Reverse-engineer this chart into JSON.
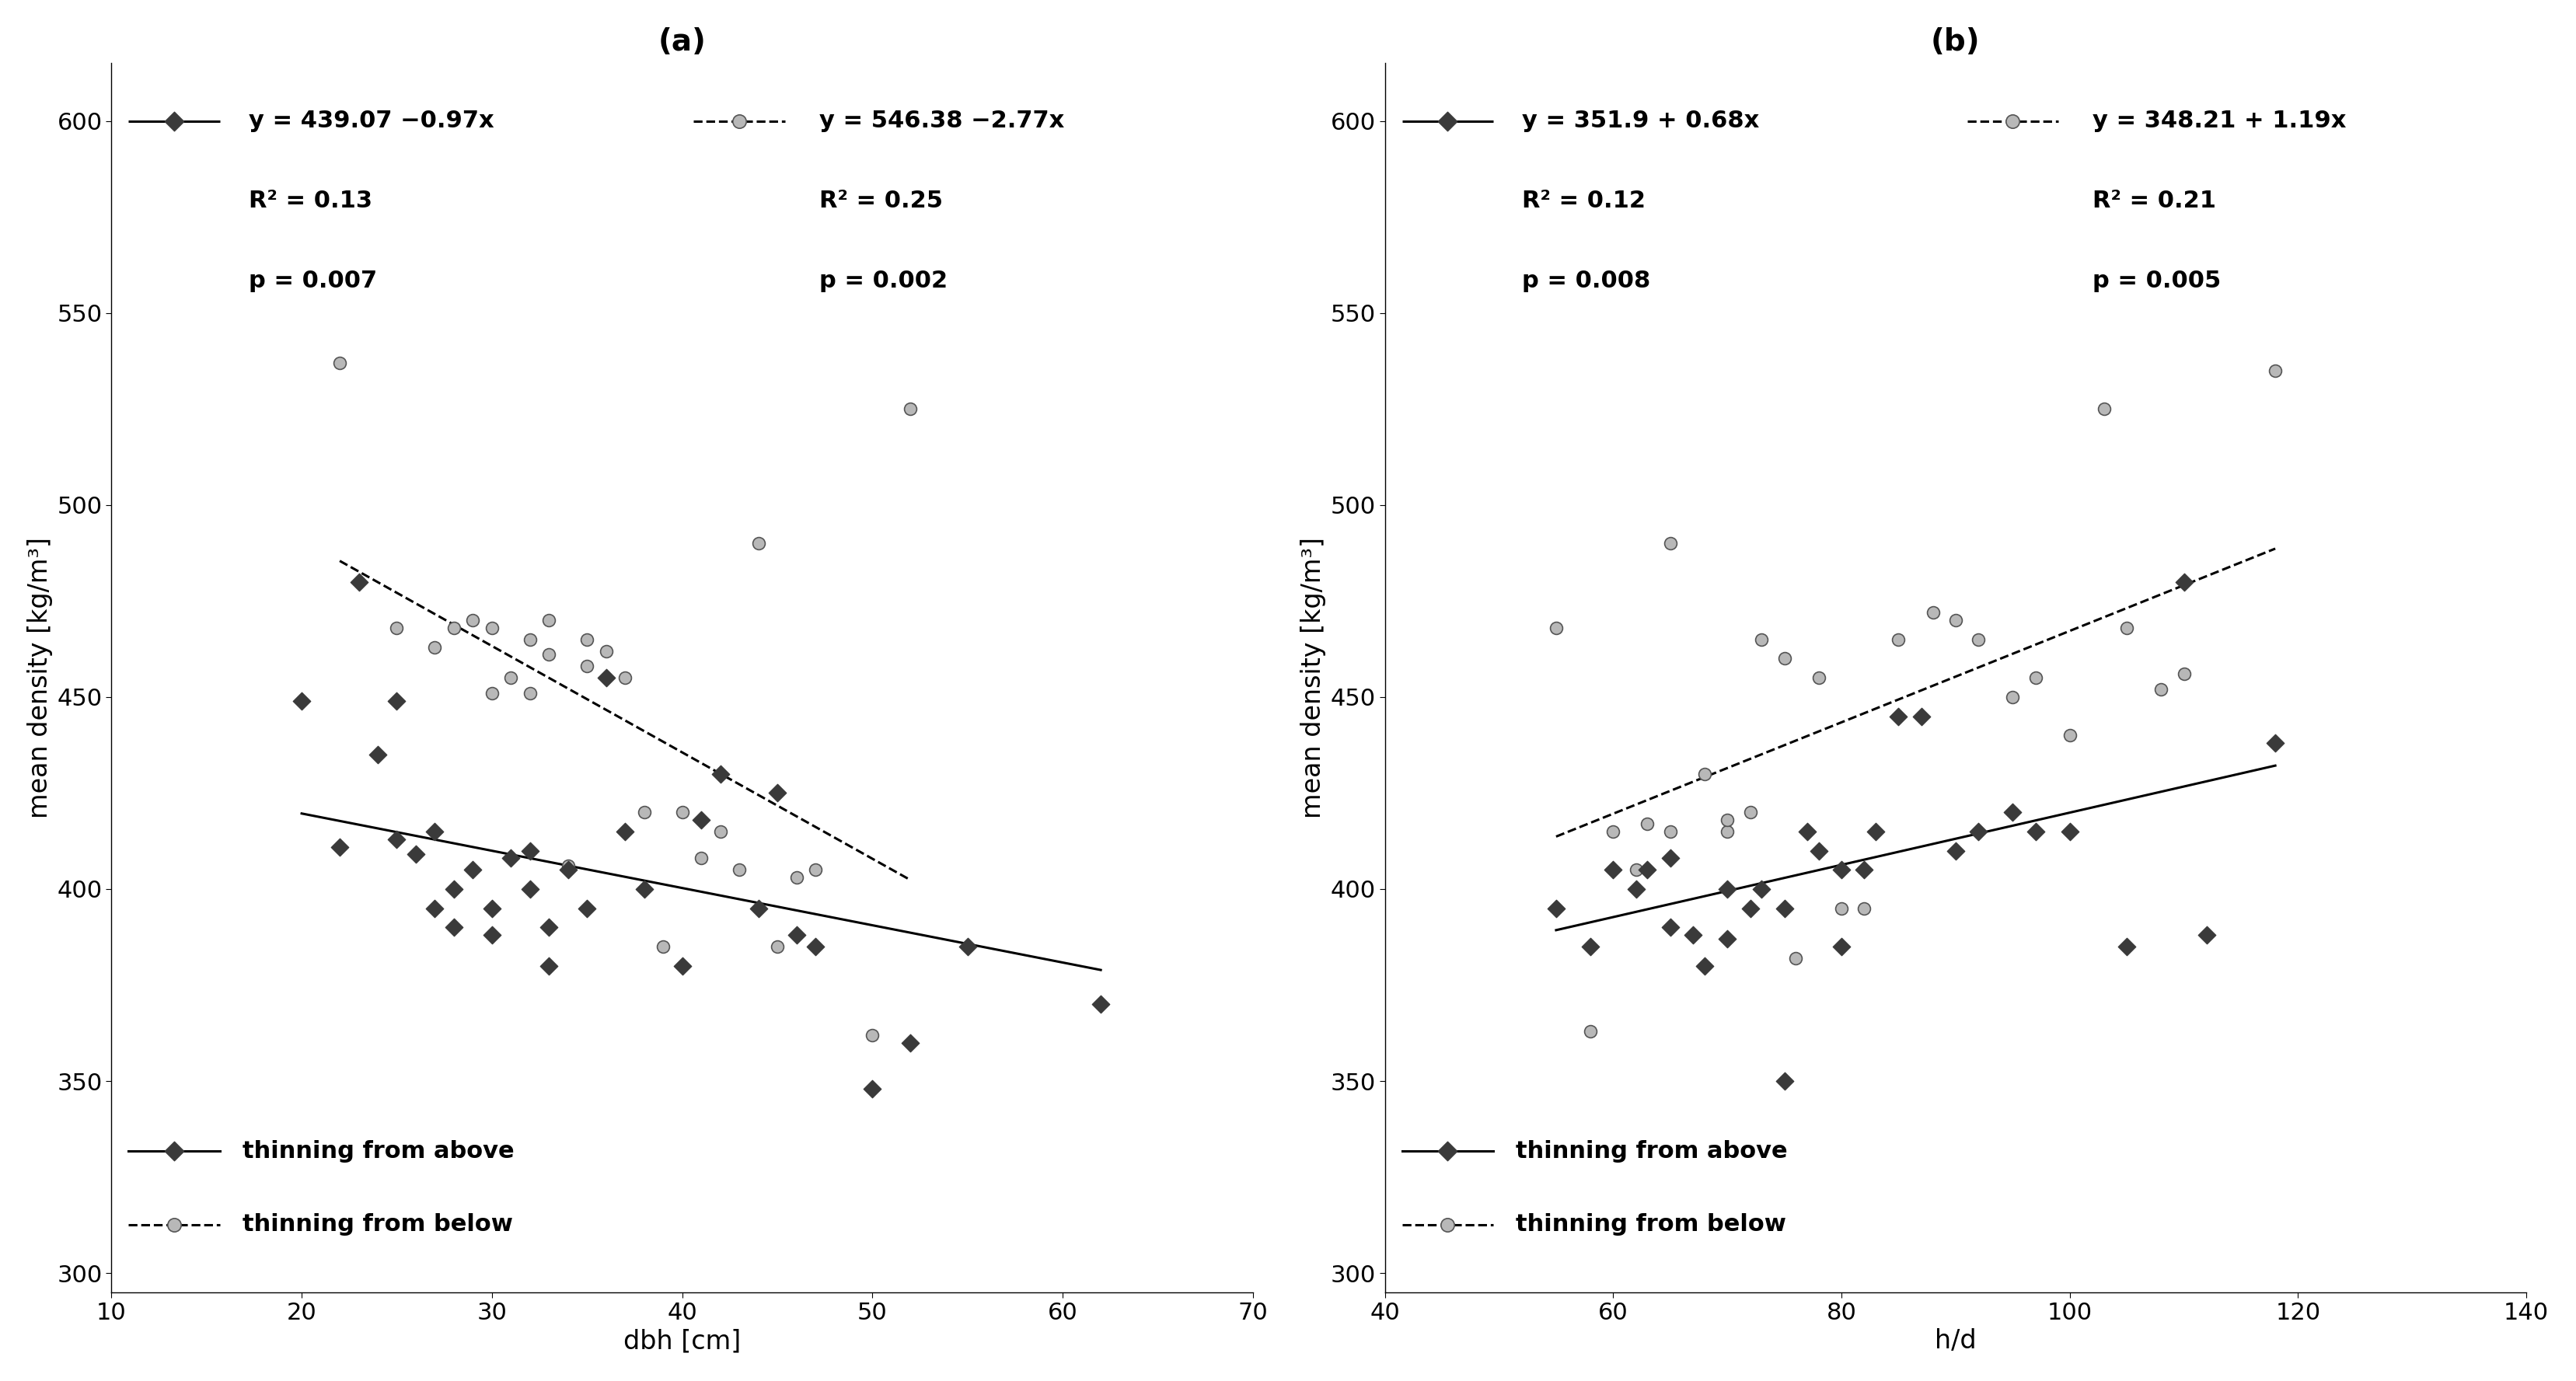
{
  "panel_a": {
    "title": "(a)",
    "xlabel": "dbh [cm]",
    "ylabel": "mean density [kg/m³]",
    "xlim": [
      10,
      70
    ],
    "ylim": [
      295,
      615
    ],
    "xticks": [
      10,
      20,
      30,
      40,
      50,
      60,
      70
    ],
    "yticks": [
      300,
      350,
      400,
      450,
      500,
      550,
      600
    ],
    "above_x": [
      20,
      22,
      23,
      24,
      25,
      25,
      26,
      27,
      27,
      28,
      28,
      29,
      30,
      30,
      31,
      32,
      32,
      33,
      33,
      34,
      35,
      36,
      37,
      38,
      40,
      41,
      42,
      44,
      45,
      46,
      47,
      50,
      52,
      55,
      62
    ],
    "above_y": [
      449,
      411,
      480,
      435,
      413,
      449,
      409,
      415,
      395,
      400,
      390,
      405,
      395,
      388,
      408,
      410,
      400,
      390,
      380,
      405,
      395,
      455,
      415,
      400,
      380,
      418,
      430,
      395,
      425,
      388,
      385,
      348,
      360,
      385,
      370
    ],
    "below_x": [
      22,
      25,
      27,
      28,
      29,
      30,
      30,
      31,
      32,
      32,
      33,
      33,
      34,
      35,
      35,
      36,
      37,
      38,
      39,
      40,
      41,
      42,
      43,
      44,
      45,
      46,
      47,
      50,
      52
    ],
    "below_y": [
      537,
      468,
      463,
      468,
      470,
      468,
      451,
      455,
      451,
      465,
      470,
      461,
      406,
      465,
      458,
      462,
      455,
      420,
      385,
      420,
      408,
      415,
      405,
      490,
      385,
      403,
      405,
      362,
      525
    ],
    "above_eq": "y = 439.07 −0.97x",
    "above_r2": "R² = 0.13",
    "above_p": "p = 0.007",
    "above_intercept": 439.07,
    "above_slope": -0.97,
    "above_xmin": 20,
    "above_xmax": 62,
    "below_eq": "y = 546.38 −2.77x",
    "below_r2": "R² = 0.25",
    "below_p": "p = 0.002",
    "below_intercept": 546.38,
    "below_slope": -2.77,
    "below_xmin": 22,
    "below_xmax": 52
  },
  "panel_b": {
    "title": "(b)",
    "xlabel": "h/d",
    "ylabel": "mean density [kg/m³]",
    "xlim": [
      40,
      140
    ],
    "ylim": [
      295,
      615
    ],
    "xticks": [
      40,
      60,
      80,
      100,
      120,
      140
    ],
    "yticks": [
      300,
      350,
      400,
      450,
      500,
      550,
      600
    ],
    "above_x": [
      55,
      58,
      60,
      62,
      63,
      65,
      65,
      67,
      68,
      70,
      70,
      72,
      73,
      75,
      75,
      77,
      78,
      80,
      80,
      82,
      83,
      85,
      87,
      90,
      92,
      95,
      97,
      100,
      105,
      110,
      112,
      118
    ],
    "above_y": [
      395,
      385,
      405,
      400,
      405,
      390,
      408,
      388,
      380,
      387,
      400,
      395,
      400,
      395,
      350,
      415,
      410,
      405,
      385,
      405,
      415,
      445,
      445,
      410,
      415,
      420,
      415,
      415,
      385,
      480,
      388,
      438
    ],
    "below_x": [
      55,
      58,
      60,
      62,
      63,
      65,
      65,
      68,
      70,
      70,
      72,
      73,
      75,
      76,
      78,
      80,
      82,
      85,
      88,
      90,
      92,
      95,
      97,
      100,
      103,
      105,
      108,
      110,
      118
    ],
    "below_y": [
      468,
      363,
      415,
      405,
      417,
      415,
      490,
      430,
      415,
      418,
      420,
      465,
      460,
      382,
      455,
      395,
      395,
      465,
      472,
      470,
      465,
      450,
      455,
      440,
      525,
      468,
      452,
      456,
      535
    ],
    "above_eq": "y = 351.9 + 0.68x",
    "above_r2": "R² = 0.12",
    "above_p": "p = 0.008",
    "above_intercept": 351.9,
    "above_slope": 0.68,
    "above_xmin": 55,
    "above_xmax": 118,
    "below_eq": "y = 348.21 + 1.19x",
    "below_r2": "R² = 0.21",
    "below_p": "p = 0.005",
    "below_intercept": 348.21,
    "below_slope": 1.19,
    "below_xmin": 55,
    "below_xmax": 118
  },
  "above_color": "#3a3a3a",
  "below_color": "#b8b8b8",
  "above_marker": "D",
  "below_marker": "o",
  "marker_size": 130,
  "line_width": 2.2,
  "title_fontsize": 28,
  "tick_fontsize": 22,
  "label_fontsize": 24,
  "legend_fontsize": 22,
  "eq_fontsize": 22,
  "background_color": "#ffffff"
}
